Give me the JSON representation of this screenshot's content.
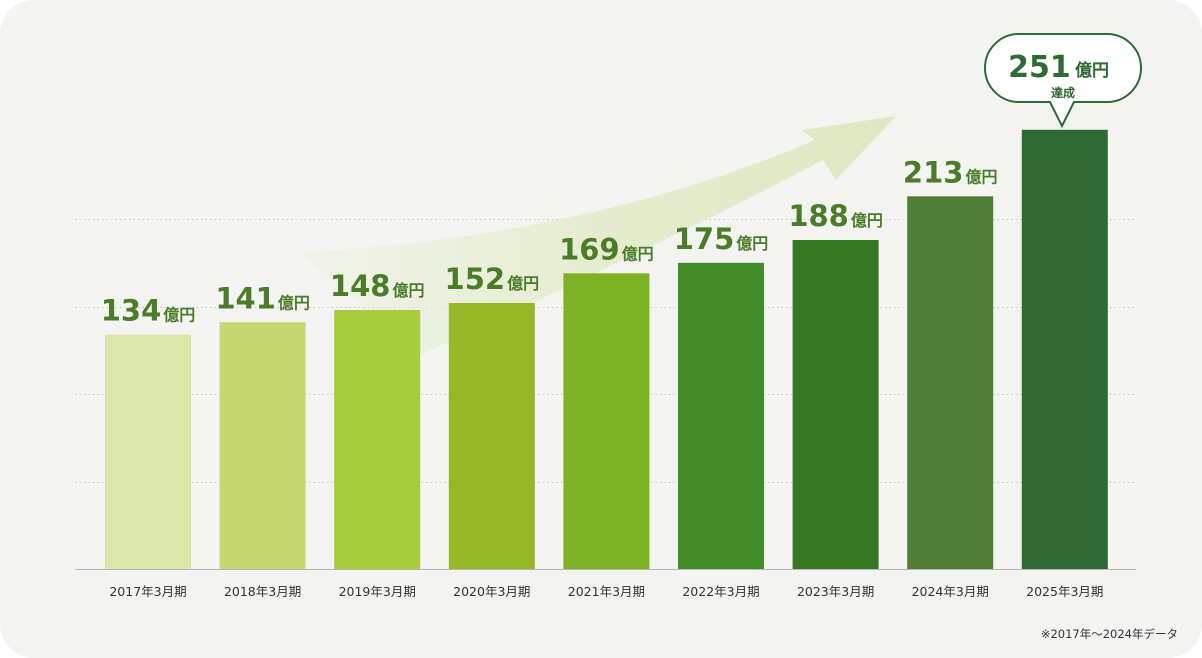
{
  "chart_data": {
    "type": "bar",
    "categories": [
      "2017年3月期",
      "2018年3月期",
      "2019年3月期",
      "2020年3月期",
      "2021年3月期",
      "2022年3月期",
      "2023年3月期",
      "2024年3月期",
      "2025年3月期"
    ],
    "values": [
      134,
      141,
      148,
      152,
      169,
      175,
      188,
      213,
      251
    ],
    "value_suffix": "億円",
    "bar_colors": [
      "#d9e8a9",
      "#c6d76f",
      "#a6cd3e",
      "#95b826",
      "#7db124",
      "#428d28",
      "#377825",
      "#507e35",
      "#2f6a34"
    ],
    "label_color": "#4a7c2a",
    "grid": true,
    "grid_style": "dotted",
    "ylim": [
      0,
      280
    ],
    "callout": {
      "value": "251",
      "unit": "億円",
      "text": "達成",
      "color": "#2f6a34"
    },
    "trend_arrow": true,
    "footnote": "※2017年～2024年データ"
  }
}
